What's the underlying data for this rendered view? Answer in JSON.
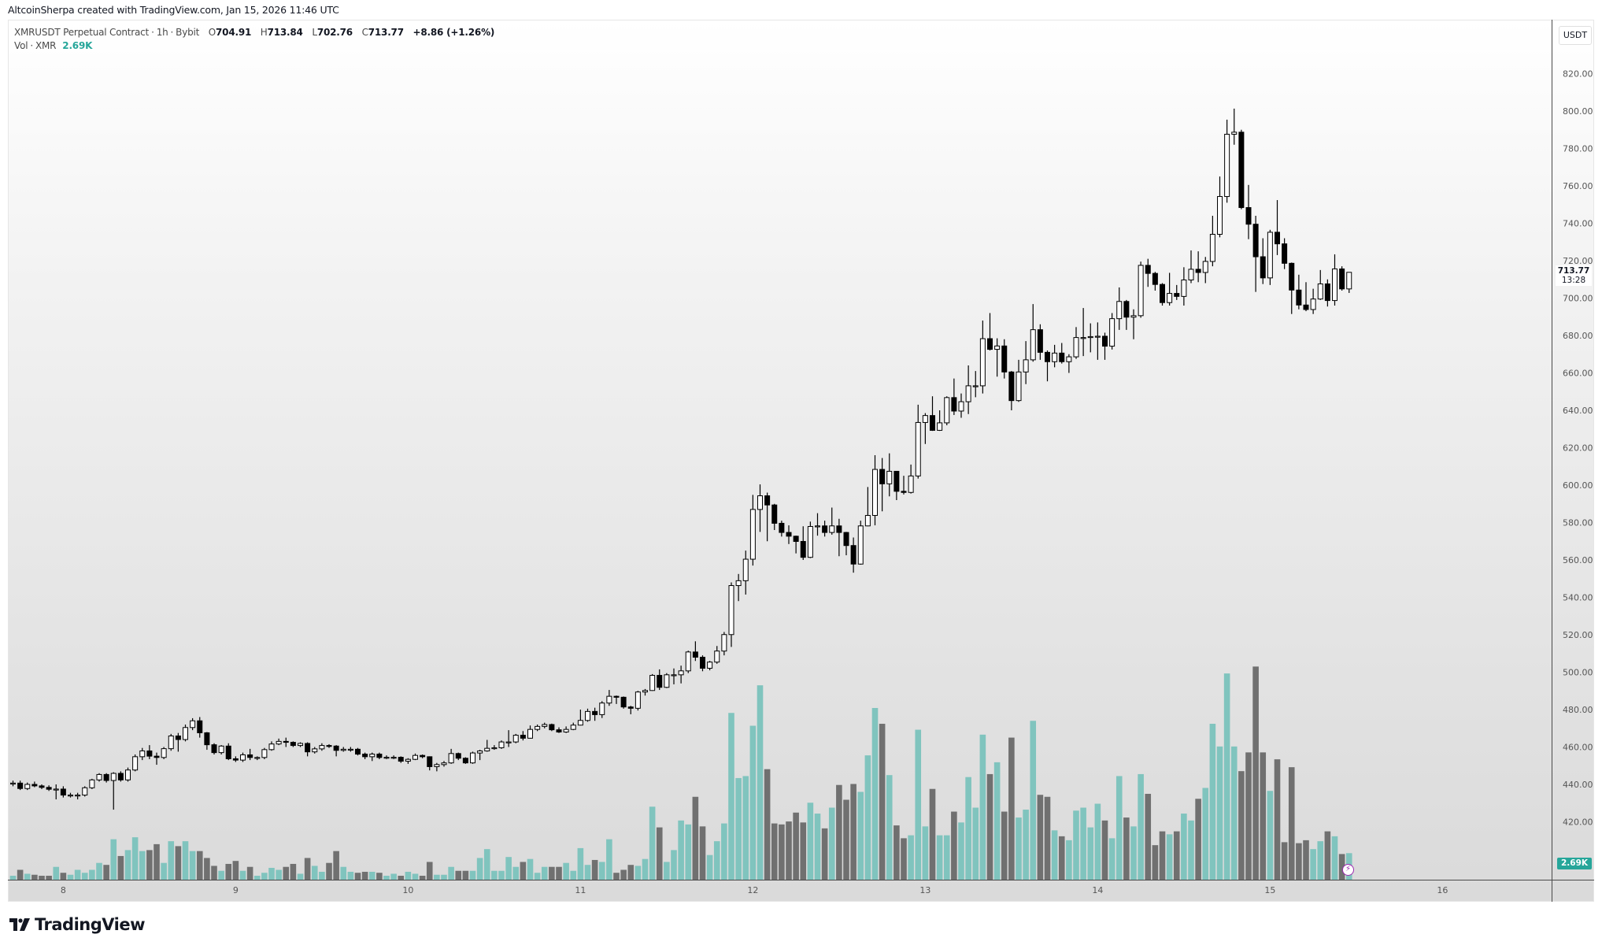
{
  "header": {
    "attribution": "AltcoinSherpa created with TradingView.com, Jan 15, 2026 11:46 UTC"
  },
  "legend": {
    "symbol": "XMRUSDT Perpetual Contract",
    "separator": "·",
    "interval": "1h",
    "exchange": "Bybit",
    "open_label": "O",
    "open": "704.91",
    "high_label": "H",
    "high": "713.84",
    "low_label": "L",
    "low": "702.76",
    "close_label": "C",
    "close": "713.77",
    "change": "+8.86 (+1.26%)",
    "vol_label": "Vol",
    "vol_asset": "XMR",
    "vol_value": "2.69K"
  },
  "price_axis": {
    "currency": "USDT",
    "last_price": "713.77",
    "countdown": "13:28",
    "last_volume": "2.69K"
  },
  "brand": {
    "logo_text": "TradingView"
  },
  "colors": {
    "up_volume": "#80c4be",
    "down_volume": "#707070",
    "candle_up": "#ffffff",
    "candle_down": "#000000",
    "accent": "#26a69a",
    "alert": "#9c27b0"
  },
  "chart_data": {
    "type": "candlestick",
    "title": "XMRUSDT Perpetual Contract · 1h · Bybit",
    "ylabel": "USDT",
    "ylim": [
      400,
      830
    ],
    "volume_unit": "K",
    "y_ticks": [
      420,
      440,
      460,
      480,
      500,
      520,
      540,
      560,
      580,
      600,
      620,
      640,
      660,
      680,
      700,
      720,
      740,
      760,
      780,
      800,
      820
    ],
    "x_ticks": [
      {
        "label": "8",
        "index": 7
      },
      {
        "label": "9",
        "index": 31
      },
      {
        "label": "10",
        "index": 55
      },
      {
        "label": "11",
        "index": 79
      },
      {
        "label": "12",
        "index": 103
      },
      {
        "label": "13",
        "index": 127
      },
      {
        "label": "14",
        "index": 151
      },
      {
        "label": "15",
        "index": 175
      },
      {
        "label": "16",
        "index": 199
      }
    ],
    "first_open": 440.5,
    "close": [
      440.7,
      437.8,
      440,
      439.2,
      438.4,
      437.4,
      437.5,
      434.3,
      434.3,
      434.3,
      438.2,
      442.4,
      445.3,
      442.1,
      445.9,
      442.4,
      447.7,
      454.8,
      457.9,
      455.1,
      454.4,
      459.1,
      465.9,
      464,
      470.4,
      474,
      467.6,
      461.2,
      457,
      460.5,
      453.7,
      453,
      455.8,
      454.4,
      454.4,
      458.6,
      461.6,
      463,
      462.5,
      460.8,
      461.9,
      457.4,
      459,
      460.8,
      460.5,
      458.2,
      458.8,
      458.8,
      456.2,
      454.8,
      456.2,
      454.4,
      454.5,
      454.5,
      452.4,
      453.4,
      455.5,
      454.8,
      449.5,
      450.6,
      451.5,
      456.5,
      454,
      451.5,
      456.8,
      457.9,
      459.3,
      459.6,
      462.7,
      462.7,
      466.3,
      464.7,
      469.4,
      471,
      472,
      469.2,
      468,
      469.4,
      471.7,
      474.2,
      479,
      477.3,
      483.5,
      487.1,
      486.6,
      481.4,
      480.7,
      489.4,
      490.2,
      498.3,
      491.9,
      498.6,
      498.6,
      500.7,
      510.8,
      508,
      502.1,
      505.4,
      511.3,
      520.1,
      546.3,
      548.9,
      560.4,
      587,
      594.3,
      589.4,
      579.6,
      574.7,
      572.7,
      569.9,
      561.4,
      577.9,
      578.2,
      574.7,
      578.2,
      574.7,
      567.7,
      557.8,
      578.2,
      583.8,
      608.4,
      600.7,
      607.4,
      596.7,
      596.1,
      604.9,
      633.5,
      637.2,
      629.3,
      633.3,
      646.8,
      639.6,
      644.6,
      653.1,
      653.1,
      678.3,
      672.6,
      674.4,
      660.5,
      645.2,
      660.5,
      667,
      683.1,
      671,
      666,
      670.6,
      666,
      668.6,
      678.9,
      678.9,
      679.4,
      679.6,
      674.3,
      689,
      698.2,
      689.8,
      690.6,
      717.5,
      713.2,
      707.3,
      697.6,
      702.5,
      700.9,
      709.7,
      715.4,
      713.7,
      719.6,
      734.1,
      754.3,
      787.6,
      788.7,
      748.4,
      739.5,
      722.1,
      710.8,
      735.2,
      729,
      718.6,
      704.3,
      696.3,
      693.9,
      699.5,
      707.6,
      698.7,
      715.6,
      704.91,
      713.77
    ],
    "high": [
      442,
      442,
      441,
      441.5,
      440,
      439.5,
      440,
      439,
      435.5,
      435.5,
      439,
      443,
      446,
      446,
      446.5,
      447,
      449,
      456,
      459.5,
      461,
      457,
      460,
      467,
      467.5,
      472,
      475.4,
      476,
      468,
      462,
      461,
      462,
      455,
      457,
      459,
      455,
      459.5,
      463,
      464.5,
      465,
      463,
      462.5,
      462.5,
      460,
      462,
      461.5,
      461,
      460,
      460,
      459.5,
      457,
      457,
      457,
      455.5,
      455.5,
      455,
      454,
      456.5,
      456,
      455,
      451.5,
      452.5,
      459,
      457,
      454.5,
      457.5,
      458.5,
      463.8,
      461,
      463.5,
      469,
      467,
      468.5,
      471.5,
      472,
      473,
      472.5,
      470.5,
      471,
      473,
      480,
      480.5,
      481,
      484.5,
      490.5,
      487.5,
      487,
      482,
      490,
      491,
      499,
      501.5,
      499.5,
      502,
      503.5,
      511.5,
      516.5,
      509,
      506,
      514,
      521.5,
      548,
      552.5,
      565,
      594.8,
      600.4,
      596,
      590,
      581,
      578.5,
      573,
      578,
      580.5,
      585,
      581,
      588,
      582,
      575,
      572,
      581,
      599,
      616,
      614.5,
      617,
      607.5,
      605,
      611,
      643,
      638.5,
      647.5,
      640,
      647.5,
      657,
      649,
      664,
      661,
      688,
      692,
      678.5,
      678,
      661,
      667,
      677,
      696.8,
      686,
      672,
      675,
      676,
      670,
      684.5,
      694.7,
      686.5,
      687,
      681.5,
      692,
      705.7,
      699,
      694,
      719.5,
      721,
      714,
      708,
      713.5,
      707,
      716.5,
      725.5,
      725,
      722,
      744,
      765,
      795.4,
      801.3,
      790,
      760.5,
      744,
      732,
      736.5,
      752.4,
      732,
      719,
      712.5,
      708.5,
      705,
      715,
      710,
      723.4,
      717,
      713.84
    ],
    "low": [
      439,
      437,
      437,
      438.5,
      437.5,
      436.5,
      432,
      433,
      433,
      432,
      433.5,
      437.5,
      441.5,
      441,
      426.5,
      441.5,
      441.5,
      447,
      453,
      453.5,
      450.5,
      453.5,
      458,
      457.5,
      463,
      469,
      465,
      458.5,
      456,
      456,
      453,
      452,
      452,
      453,
      453,
      453.5,
      458,
      461,
      460,
      460,
      460,
      455,
      456.5,
      458,
      459.5,
      455,
      457.5,
      457.5,
      455.5,
      453.5,
      452.5,
      453.5,
      453.5,
      453.5,
      451.5,
      451,
      453,
      454,
      447.5,
      447,
      449.5,
      451,
      453,
      451,
      451,
      453,
      457.5,
      458.5,
      459,
      460,
      462,
      463.5,
      464.5,
      468.5,
      470,
      468.5,
      467.5,
      467.5,
      469,
      471.5,
      473.5,
      474,
      475.5,
      482,
      483,
      480.5,
      477.5,
      479.5,
      487.5,
      490,
      490.5,
      491.5,
      493.5,
      494,
      499.5,
      506,
      500.5,
      501,
      504.5,
      509,
      513.5,
      538,
      541.5,
      557,
      575,
      570,
      576,
      572.5,
      568.5,
      563.5,
      560,
      561,
      573,
      572.5,
      573.5,
      562,
      562.5,
      553.2,
      557.5,
      578,
      578.5,
      586,
      594,
      592,
      595,
      595.5,
      603.5,
      622,
      629,
      629,
      632,
      637.5,
      636,
      638,
      647,
      649,
      672,
      658,
      657,
      640,
      644.5,
      654,
      666,
      667,
      655.5,
      663,
      665,
      660,
      667.5,
      669,
      671,
      667,
      667,
      672.5,
      683,
      683,
      678,
      689.5,
      706,
      704,
      696,
      696,
      699,
      696,
      708,
      708.5,
      708,
      717,
      732.5,
      751,
      782,
      747.5,
      731.5,
      703.3,
      707.5,
      707,
      723,
      715.5,
      691.5,
      694,
      693,
      691.5,
      699,
      695.5,
      696,
      704,
      702.76
    ],
    "volume": [
      0.4,
      1.0,
      0.6,
      0.5,
      0.4,
      0.4,
      1.3,
      0.7,
      0.5,
      1.0,
      0.7,
      1.0,
      1.7,
      1.5,
      4.1,
      2.4,
      3.0,
      4.3,
      2.9,
      3.0,
      3.6,
      1.7,
      3.9,
      3.4,
      3.9,
      2.9,
      2.9,
      2.2,
      1.4,
      0.9,
      1.6,
      1.9,
      0.9,
      1.3,
      0.4,
      0.7,
      1.2,
      1.0,
      1.3,
      1.6,
      0.6,
      2.2,
      1.4,
      0.8,
      1.7,
      2.9,
      1.3,
      0.8,
      0.7,
      0.8,
      0.8,
      0.7,
      0.4,
      0.6,
      0.4,
      0.8,
      0.6,
      0.4,
      1.8,
      0.5,
      0.5,
      1.3,
      0.9,
      0.9,
      0.9,
      2.2,
      3.1,
      0.9,
      0.9,
      2.3,
      1.3,
      1.8,
      2.1,
      0.7,
      1.3,
      1.3,
      1.3,
      1.7,
      0.9,
      3.2,
      1.5,
      2.0,
      1.8,
      4.1,
      0.7,
      1.0,
      1.5,
      1.4,
      2.1,
      7.4,
      5.3,
      1.8,
      3.0,
      6.0,
      5.6,
      8.4,
      5.4,
      2.5,
      3.9,
      5.7,
      16.9,
      10.3,
      10.5,
      15.6,
      19.7,
      11.2,
      5.7,
      5.6,
      5.9,
      6.8,
      5.8,
      7.8,
      6.7,
      5.2,
      7.3,
      9.6,
      8.1,
      9.7,
      8.9,
      12.6,
      17.4,
      15.8,
      10.6,
      5.5,
      4.2,
      4.5,
      15.2,
      5.4,
      9.2,
      4.5,
      4.5,
      6.9,
      5.8,
      10.4,
      7.3,
      14.7,
      10.7,
      11.9,
      6.9,
      14.4,
      6.3,
      7.1,
      16.1,
      8.6,
      8.4,
      5.0,
      4.4,
      4.0,
      7.0,
      7.3,
      5.3,
      7.7,
      6.0,
      4.2,
      10.5,
      6.3,
      5.4,
      10.7,
      8.7,
      3.5,
      4.9,
      4.6,
      4.9,
      6.7,
      6.0,
      8.2,
      9.3,
      15.8,
      13.5,
      20.9,
      13.5,
      11.0,
      12.9,
      21.6,
      12.9,
      9.0,
      12.2,
      3.8,
      11.4,
      3.7,
      4.0,
      3.1,
      3.9,
      4.9,
      4.4,
      2.6,
      2.69
    ]
  }
}
